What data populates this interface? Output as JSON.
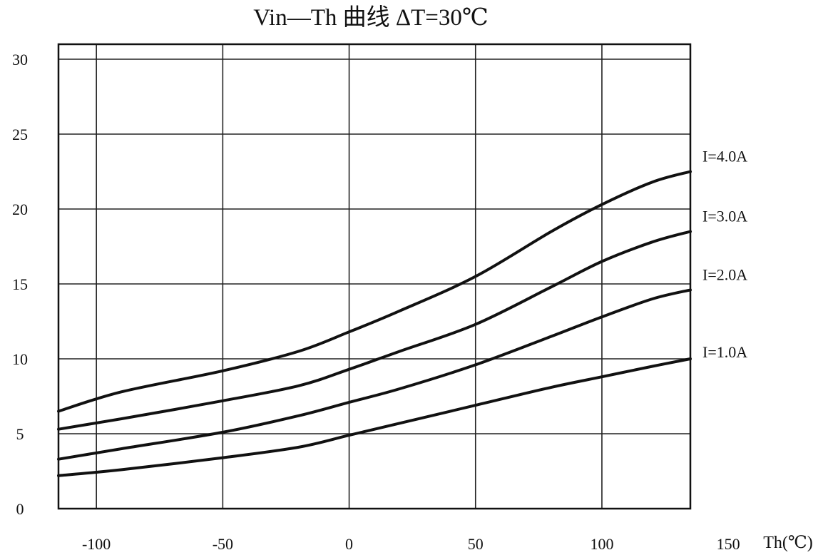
{
  "chart_data": {
    "type": "line",
    "title": "Vin—Th 曲线     ΔT=30℃",
    "xlabel": "Th(℃)",
    "ylabel": "",
    "xlim": [
      -115,
      135
    ],
    "ylim": [
      0,
      31
    ],
    "x_ticks": [
      {
        "value": -100,
        "label": "-100"
      },
      {
        "value": -50,
        "label": "-50"
      },
      {
        "value": 0,
        "label": "0"
      },
      {
        "value": 50,
        "label": "50"
      },
      {
        "value": 100,
        "label": "100"
      },
      {
        "value": 150,
        "label": "150"
      }
    ],
    "y_ticks": [
      {
        "value": 0,
        "label": "0"
      },
      {
        "value": 5,
        "label": "5"
      },
      {
        "value": 10,
        "label": "10"
      },
      {
        "value": 15,
        "label": "15"
      },
      {
        "value": 20,
        "label": "20"
      },
      {
        "value": 25,
        "label": "25"
      },
      {
        "value": 30,
        "label": "30"
      }
    ],
    "grid": true,
    "legend_position": "right",
    "series": [
      {
        "name": "I=4.0A",
        "x": [
          -115,
          -90,
          -50,
          -20,
          0,
          20,
          50,
          80,
          100,
          120,
          135
        ],
        "y": [
          6.5,
          7.8,
          9.2,
          10.5,
          11.8,
          13.2,
          15.5,
          18.5,
          20.3,
          21.8,
          22.5
        ]
      },
      {
        "name": "I=3.0A",
        "x": [
          -115,
          -90,
          -50,
          -20,
          0,
          20,
          50,
          80,
          100,
          120,
          135
        ],
        "y": [
          5.3,
          6.0,
          7.2,
          8.2,
          9.3,
          10.5,
          12.3,
          14.8,
          16.5,
          17.8,
          18.5
        ]
      },
      {
        "name": "I=2.0A",
        "x": [
          -115,
          -90,
          -50,
          -20,
          0,
          20,
          50,
          80,
          100,
          120,
          135
        ],
        "y": [
          3.3,
          4.0,
          5.1,
          6.2,
          7.1,
          8.0,
          9.6,
          11.5,
          12.8,
          14.0,
          14.6
        ]
      },
      {
        "name": "I=1.0A",
        "x": [
          -115,
          -90,
          -50,
          -20,
          0,
          20,
          50,
          80,
          100,
          120,
          135
        ],
        "y": [
          2.2,
          2.6,
          3.4,
          4.1,
          4.9,
          5.7,
          6.9,
          8.1,
          8.8,
          9.5,
          10.0
        ]
      }
    ]
  }
}
